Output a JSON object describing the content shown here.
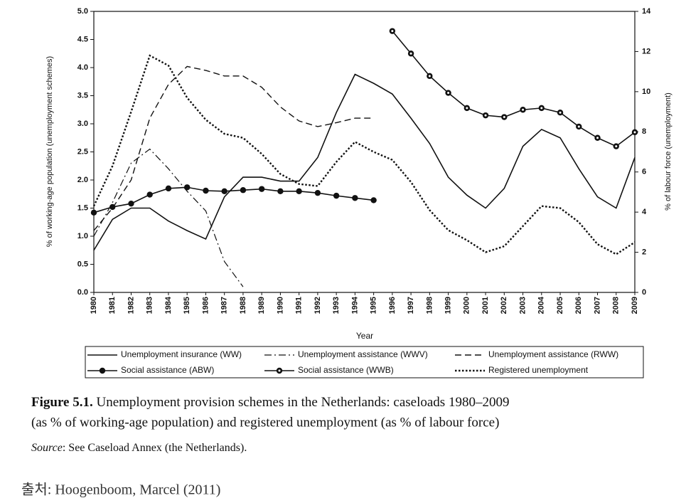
{
  "chart_data": {
    "type": "line",
    "x_label": "Year",
    "y_label": "% of working-age population (unemployment schemes)",
    "y2_label": "% of labour force (unemployment)",
    "categories": [
      "1980",
      "1981",
      "1982",
      "1983",
      "1984",
      "1985",
      "1986",
      "1987",
      "1988",
      "1989",
      "1990",
      "1991",
      "1992",
      "1993",
      "1994",
      "1995",
      "1996",
      "1997",
      "1998",
      "1999",
      "2000",
      "2001",
      "2002",
      "2003",
      "2004",
      "2005",
      "2006",
      "2007",
      "2008",
      "2009"
    ],
    "ylim": [
      0,
      5
    ],
    "yticks": [
      {
        "value": 0,
        "label": "0.0"
      },
      {
        "value": 0.5,
        "label": "0.5"
      },
      {
        "value": 1,
        "label": "1.0"
      },
      {
        "value": 1.5,
        "label": "1.5"
      },
      {
        "value": 2,
        "label": "2.0"
      },
      {
        "value": 2.5,
        "label": "2.5"
      },
      {
        "value": 3,
        "label": "3.0"
      },
      {
        "value": 3.5,
        "label": "3.5"
      },
      {
        "value": 4,
        "label": "4.0"
      },
      {
        "value": 4.5,
        "label": "4.5"
      },
      {
        "value": 5,
        "label": "5.0"
      }
    ],
    "y2lim": [
      0,
      14
    ],
    "y2ticks": [
      0,
      2,
      4,
      6,
      8,
      10,
      12,
      14
    ],
    "series": [
      {
        "name": "Unemployment insurance (WW)",
        "color": "#111111",
        "style": "solid",
        "marker": "none",
        "values": [
          0.75,
          1.3,
          1.5,
          1.5,
          1.27,
          1.1,
          0.95,
          1.7,
          2.05,
          2.05,
          1.98,
          1.98,
          2.4,
          3.2,
          3.88,
          3.72,
          3.53,
          3.1,
          2.65,
          2.05,
          1.73,
          1.5,
          1.85,
          2.6,
          2.9,
          2.75,
          2.2,
          1.7,
          1.5,
          2.4
        ]
      },
      {
        "name": "Unemployment assistance (WWV)",
        "color": "#111111",
        "style": "dash-dot",
        "marker": "none",
        "values": [
          1.0,
          1.6,
          2.3,
          2.55,
          2.2,
          1.8,
          1.45,
          0.55,
          0.1,
          null,
          null,
          null,
          null,
          null,
          null,
          null,
          null,
          null,
          null,
          null,
          null,
          null,
          null,
          null,
          null,
          null,
          null,
          null,
          null,
          null
        ]
      },
      {
        "name": "Unemployment assistance (RWW)",
        "color": "#111111",
        "style": "dashed",
        "marker": "none",
        "values": [
          1.1,
          1.5,
          2.0,
          3.1,
          3.7,
          4.02,
          3.95,
          3.85,
          3.85,
          3.65,
          3.3,
          3.05,
          2.95,
          3.02,
          3.1,
          3.1,
          null,
          null,
          null,
          null,
          null,
          null,
          null,
          null,
          null,
          null,
          null,
          null,
          null,
          null
        ]
      },
      {
        "name": "Social assistance (ABW)",
        "color": "#111111",
        "style": "solid",
        "marker": "filled",
        "values": [
          1.42,
          1.52,
          1.58,
          1.74,
          1.85,
          1.87,
          1.81,
          1.8,
          1.82,
          1.84,
          1.8,
          1.8,
          1.77,
          1.72,
          1.68,
          1.64,
          null,
          null,
          null,
          null,
          null,
          null,
          null,
          null,
          null,
          null,
          null,
          null,
          null,
          null
        ]
      },
      {
        "name": "Social assistance (WWB)",
        "color": "#111111",
        "style": "solid",
        "marker": "open",
        "values": [
          null,
          null,
          null,
          null,
          null,
          null,
          null,
          null,
          null,
          null,
          null,
          null,
          null,
          null,
          null,
          null,
          4.65,
          4.25,
          3.85,
          3.55,
          3.28,
          3.15,
          3.12,
          3.25,
          3.28,
          3.2,
          2.95,
          2.75,
          2.6,
          2.85
        ]
      },
      {
        "name": "Registered unemployment",
        "color": "#111111",
        "style": "dotted",
        "marker": "none",
        "axis": "y2",
        "values": [
          4.3,
          6.3,
          9.0,
          11.8,
          11.3,
          9.7,
          8.6,
          7.9,
          7.7,
          6.9,
          5.9,
          5.4,
          5.3,
          6.5,
          7.5,
          7.0,
          6.6,
          5.5,
          4.1,
          3.1,
          2.6,
          2.0,
          2.3,
          3.3,
          4.3,
          4.2,
          3.5,
          2.4,
          1.9,
          2.5
        ]
      }
    ]
  },
  "caption": {
    "label": "Figure 5.1.",
    "line1": "Unemployment provision schemes in the Netherlands: caseloads 1980–2009",
    "line2": "(as % of working-age population) and registered unemployment (as % of labour force)"
  },
  "source": {
    "label": "Source",
    "text": ": See Caseload Annex (the Netherlands)."
  },
  "credit": "출처: Hoogenboom, Marcel (2011)"
}
